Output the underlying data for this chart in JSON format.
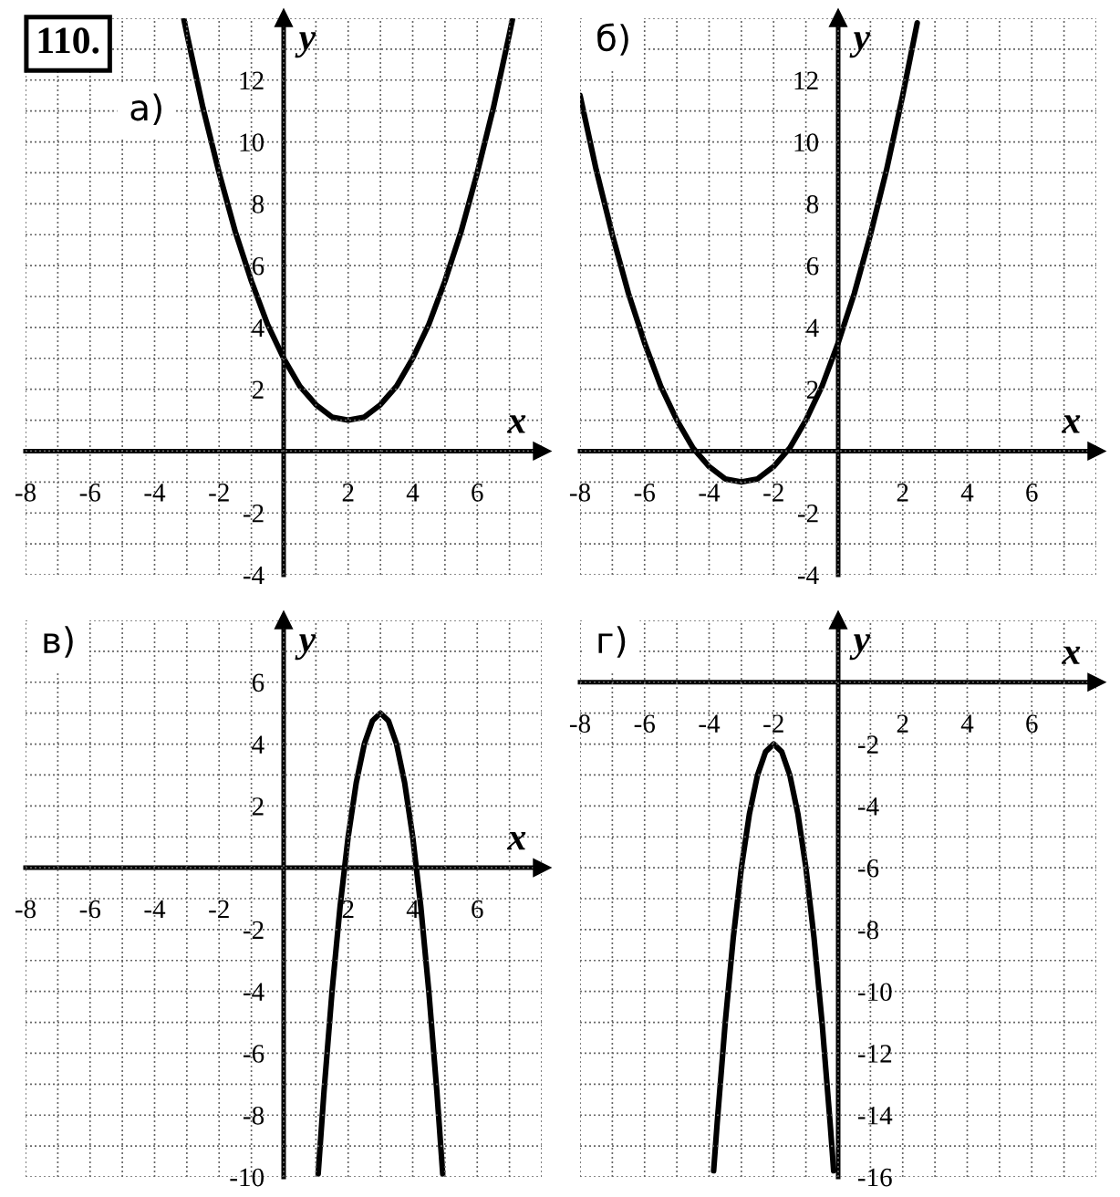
{
  "chart_data": [
    {
      "type": "line",
      "title": "а)",
      "annotations": [
        "110."
      ],
      "xlabel": "x",
      "ylabel": "y",
      "xlim": [
        -8,
        8
      ],
      "ylim": [
        -4,
        14
      ],
      "xticks": [
        -8,
        {
          "value": -7,
          "label": null
        },
        -6,
        {
          "value": -5,
          "label": null
        },
        -4,
        {
          "value": -3,
          "label": null
        },
        -2,
        {
          "value": -1,
          "label": null
        },
        {
          "value": 0,
          "label": null
        },
        {
          "value": 1,
          "label": null
        },
        2,
        {
          "value": 3,
          "label": null
        },
        4,
        {
          "value": 5,
          "label": null
        },
        6,
        {
          "value": 7,
          "label": null
        },
        {
          "value": 8,
          "label": null
        }
      ],
      "yticks": [
        -4,
        {
          "value": -3,
          "label": null
        },
        -2,
        {
          "value": -1,
          "label": null
        },
        {
          "value": 0,
          "label": null
        },
        {
          "value": 1,
          "label": null
        },
        2,
        {
          "value": 3,
          "label": null
        },
        4,
        {
          "value": 5,
          "label": null
        },
        6,
        {
          "value": 7,
          "label": null
        },
        8,
        {
          "value": 9,
          "label": null
        },
        10,
        {
          "value": 11,
          "label": null
        },
        12,
        {
          "value": 13,
          "label": null
        },
        {
          "value": 14,
          "label": null
        }
      ],
      "grid": true,
      "series": [
        {
          "color": "#000000",
          "x": [
            -3.09,
            -3,
            -2.5,
            -2,
            -1.5,
            -1,
            -0.5,
            0,
            0.5,
            1,
            1.5,
            2,
            2.5,
            3,
            3.5,
            4,
            4.5,
            5,
            5.5,
            6,
            6.5,
            7,
            7.09
          ],
          "values": [
            13.95,
            13.5,
            11.1,
            9,
            7.1,
            5.5,
            4.1,
            3,
            2.1,
            1.5,
            1.1,
            1,
            1.1,
            1.5,
            2.1,
            3,
            4.1,
            5.5,
            7.1,
            9,
            11.1,
            13.5,
            13.95
          ]
        }
      ]
    },
    {
      "type": "line",
      "title": "б)",
      "xlabel": "x",
      "ylabel": "y",
      "xlim": [
        -8,
        8
      ],
      "ylim": [
        -4,
        14
      ],
      "xticks": [
        -8,
        {
          "value": -7,
          "label": null
        },
        -6,
        {
          "value": -5,
          "label": null
        },
        -4,
        {
          "value": -3,
          "label": null
        },
        -2,
        {
          "value": -1,
          "label": null
        },
        {
          "value": 0,
          "label": null
        },
        {
          "value": 1,
          "label": null
        },
        2,
        {
          "value": 3,
          "label": null
        },
        4,
        {
          "value": 5,
          "label": null
        },
        6,
        {
          "value": 7,
          "label": null
        },
        {
          "value": 8,
          "label": null
        }
      ],
      "yticks": [
        -4,
        {
          "value": -3,
          "label": null
        },
        -2,
        {
          "value": -1,
          "label": null
        },
        {
          "value": 0,
          "label": null
        },
        {
          "value": 1,
          "label": null
        },
        2,
        {
          "value": 3,
          "label": null
        },
        4,
        {
          "value": 5,
          "label": null
        },
        6,
        {
          "value": 7,
          "label": null
        },
        8,
        {
          "value": 9,
          "label": null
        },
        10,
        {
          "value": 11,
          "label": null
        },
        12,
        {
          "value": 13,
          "label": null
        },
        {
          "value": 14,
          "label": null
        }
      ],
      "grid": true,
      "series": [
        {
          "color": "#000000",
          "x": [
            -8,
            -7.5,
            -7,
            -6.5,
            -6,
            -5.5,
            -5,
            -4.5,
            -4,
            -3.5,
            -3,
            -2.5,
            -2,
            -1.5,
            -1,
            -0.5,
            0,
            0.5,
            1,
            1.5,
            2,
            2.45
          ],
          "values": [
            11.5,
            9.1,
            7,
            5.1,
            3.5,
            2.1,
            1,
            0.1,
            -0.5,
            -0.9,
            -1,
            -0.9,
            -0.5,
            0.1,
            1,
            2.1,
            3.5,
            5.1,
            7,
            9.1,
            11.5,
            13.85
          ]
        }
      ]
    },
    {
      "type": "line",
      "title": "в)",
      "xlabel": "x",
      "ylabel": "y",
      "xlim": [
        -8,
        8
      ],
      "ylim": [
        -10,
        8
      ],
      "xticks": [
        -8,
        {
          "value": -7,
          "label": null
        },
        -6,
        {
          "value": -5,
          "label": null
        },
        -4,
        {
          "value": -3,
          "label": null
        },
        -2,
        {
          "value": -1,
          "label": null
        },
        {
          "value": 0,
          "label": null
        },
        {
          "value": 1,
          "label": null
        },
        2,
        {
          "value": 3,
          "label": null
        },
        4,
        {
          "value": 5,
          "label": null
        },
        6,
        {
          "value": 7,
          "label": null
        },
        {
          "value": 8,
          "label": null
        }
      ],
      "yticks": [
        -10,
        {
          "value": -9,
          "label": null
        },
        -8,
        {
          "value": -7,
          "label": null
        },
        -6,
        {
          "value": -5,
          "label": null
        },
        -4,
        {
          "value": -3,
          "label": null
        },
        -2,
        {
          "value": -1,
          "label": null
        },
        {
          "value": 0,
          "label": null
        },
        {
          "value": 1,
          "label": null
        },
        2,
        {
          "value": 3,
          "label": null
        },
        4,
        {
          "value": 5,
          "label": null
        },
        6,
        {
          "value": 7,
          "label": null
        },
        {
          "value": 8,
          "label": null
        }
      ],
      "grid": true,
      "series": [
        {
          "color": "#000000",
          "x": [
            1.07,
            1.25,
            1.5,
            1.75,
            2,
            2.25,
            2.5,
            2.75,
            3,
            3.25,
            3.5,
            3.75,
            4,
            4.25,
            4.5,
            4.75,
            4.93
          ],
          "values": [
            -9.9,
            -7.25,
            -4,
            -1.25,
            1,
            2.75,
            4,
            4.75,
            5,
            4.75,
            4,
            2.75,
            1,
            -1.25,
            -4,
            -7.25,
            -9.9
          ]
        }
      ]
    },
    {
      "type": "line",
      "title": "г)",
      "xlabel": "x",
      "ylabel": "y",
      "xlim": [
        -8,
        8
      ],
      "ylim": [
        -16,
        2
      ],
      "xticks": [
        -8,
        {
          "value": -7,
          "label": null
        },
        -6,
        {
          "value": -5,
          "label": null
        },
        -4,
        {
          "value": -3,
          "label": null
        },
        -2,
        {
          "value": -1,
          "label": null
        },
        {
          "value": 0,
          "label": null
        },
        {
          "value": 1,
          "label": null
        },
        2,
        {
          "value": 3,
          "label": null
        },
        4,
        {
          "value": 5,
          "label": null
        },
        6,
        {
          "value": 7,
          "label": null
        },
        {
          "value": 8,
          "label": null
        }
      ],
      "yticks": [
        -16,
        {
          "value": -15,
          "label": null
        },
        -14,
        {
          "value": -13,
          "label": null
        },
        -12,
        {
          "value": -11,
          "label": null
        },
        -10,
        {
          "value": -9,
          "label": null
        },
        -8,
        {
          "value": -7,
          "label": null
        },
        -6,
        {
          "value": -5,
          "label": null
        },
        -4,
        {
          "value": -3,
          "label": null
        },
        -2,
        {
          "value": -1,
          "label": null
        },
        {
          "value": 0,
          "label": null
        },
        {
          "value": 1,
          "label": null
        },
        {
          "value": 2,
          "label": null
        }
      ],
      "grid": true,
      "series": [
        {
          "color": "#000000",
          "x": [
            -3.86,
            -3.75,
            -3.5,
            -3.25,
            -3,
            -2.75,
            -2.5,
            -2.25,
            -2,
            -1.75,
            -1.5,
            -1.25,
            -1,
            -0.75,
            -0.5,
            -0.25,
            -0.14
          ],
          "values": [
            -15.8,
            -14.25,
            -11,
            -8.25,
            -6,
            -4.25,
            -3,
            -2.25,
            -2,
            -2.25,
            -3,
            -4.25,
            -6,
            -8.25,
            -11,
            -14.25,
            -15.8
          ]
        }
      ]
    }
  ]
}
